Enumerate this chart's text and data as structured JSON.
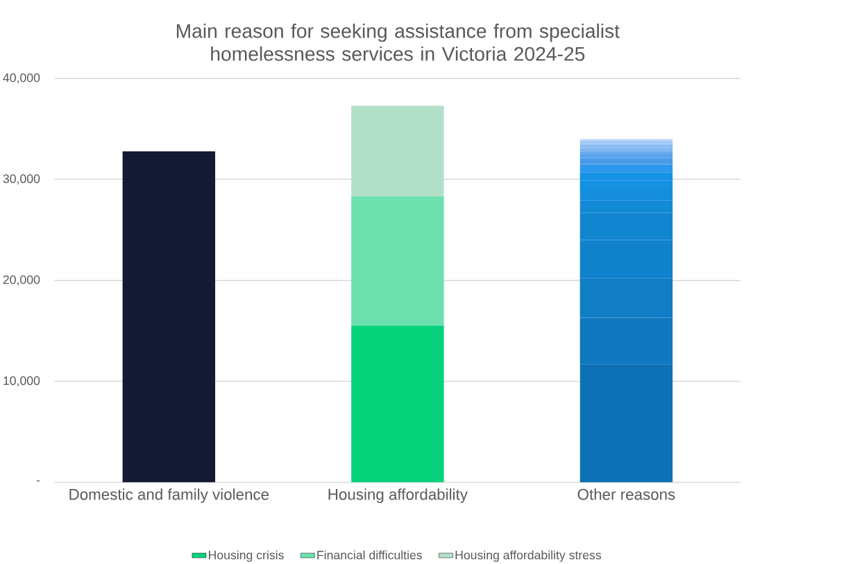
{
  "chart_data": {
    "type": "bar",
    "title": "Main reason for seeking assistance from specialist homelessness services in Victoria 2024-25",
    "categories": [
      "Domestic and family violence",
      "Housing affordability",
      "Other reasons"
    ],
    "stacked": true,
    "series": [
      {
        "color": "#131a33",
        "values": [
          32800,
          null,
          null
        ]
      },
      {
        "name": "Housing crisis",
        "color": "#07d27c",
        "values": [
          null,
          15500,
          null
        ]
      },
      {
        "name": "Financial difficulties",
        "color": "#6ce0ae",
        "values": [
          null,
          12800,
          null
        ]
      },
      {
        "name": "Housing affordability stress",
        "color": "#b2dfc8",
        "values": [
          null,
          9000,
          null
        ]
      },
      {
        "color": "#0e71b5",
        "values": [
          null,
          null,
          11700
        ]
      },
      {
        "color": "#0f78bf",
        "values": [
          null,
          null,
          4600
        ]
      },
      {
        "color": "#107dc5",
        "values": [
          null,
          null,
          3900
        ]
      },
      {
        "color": "#1081cb",
        "values": [
          null,
          null,
          3800
        ]
      },
      {
        "color": "#1285d0",
        "values": [
          null,
          null,
          2700
        ]
      },
      {
        "color": "#138ad6",
        "values": [
          null,
          null,
          1200
        ]
      },
      {
        "color": "#148ddb",
        "values": [
          null,
          null,
          1100
        ]
      },
      {
        "color": "#1591e2",
        "values": [
          null,
          null,
          900
        ]
      },
      {
        "color": "#1592e5",
        "values": [
          null,
          null,
          800
        ]
      },
      {
        "color": "#2d97eb",
        "values": [
          null,
          null,
          800
        ]
      },
      {
        "color": "#4a9ae8",
        "values": [
          null,
          null,
          600
        ]
      },
      {
        "color": "#5ba4eb",
        "values": [
          null,
          null,
          400
        ]
      },
      {
        "color": "#6aabee",
        "values": [
          null,
          null,
          300
        ]
      },
      {
        "color": "#7ab3f0",
        "values": [
          null,
          null,
          300
        ]
      },
      {
        "color": "#8cbdf2",
        "values": [
          null,
          null,
          400
        ]
      },
      {
        "color": "#a0c9f4",
        "values": [
          null,
          null,
          300
        ]
      },
      {
        "color": "#bcd8f7",
        "values": [
          null,
          null,
          200
        ]
      }
    ],
    "ylim": [
      0,
      40000
    ],
    "yticks": [
      {
        "value": 0,
        "label": "-"
      },
      {
        "value": 10000,
        "label": "10,000"
      },
      {
        "value": 20000,
        "label": "20,000"
      },
      {
        "value": 30000,
        "label": "30,000"
      },
      {
        "value": 40000,
        "label": "40,000"
      }
    ],
    "grid": "y",
    "legend": "bottom"
  }
}
